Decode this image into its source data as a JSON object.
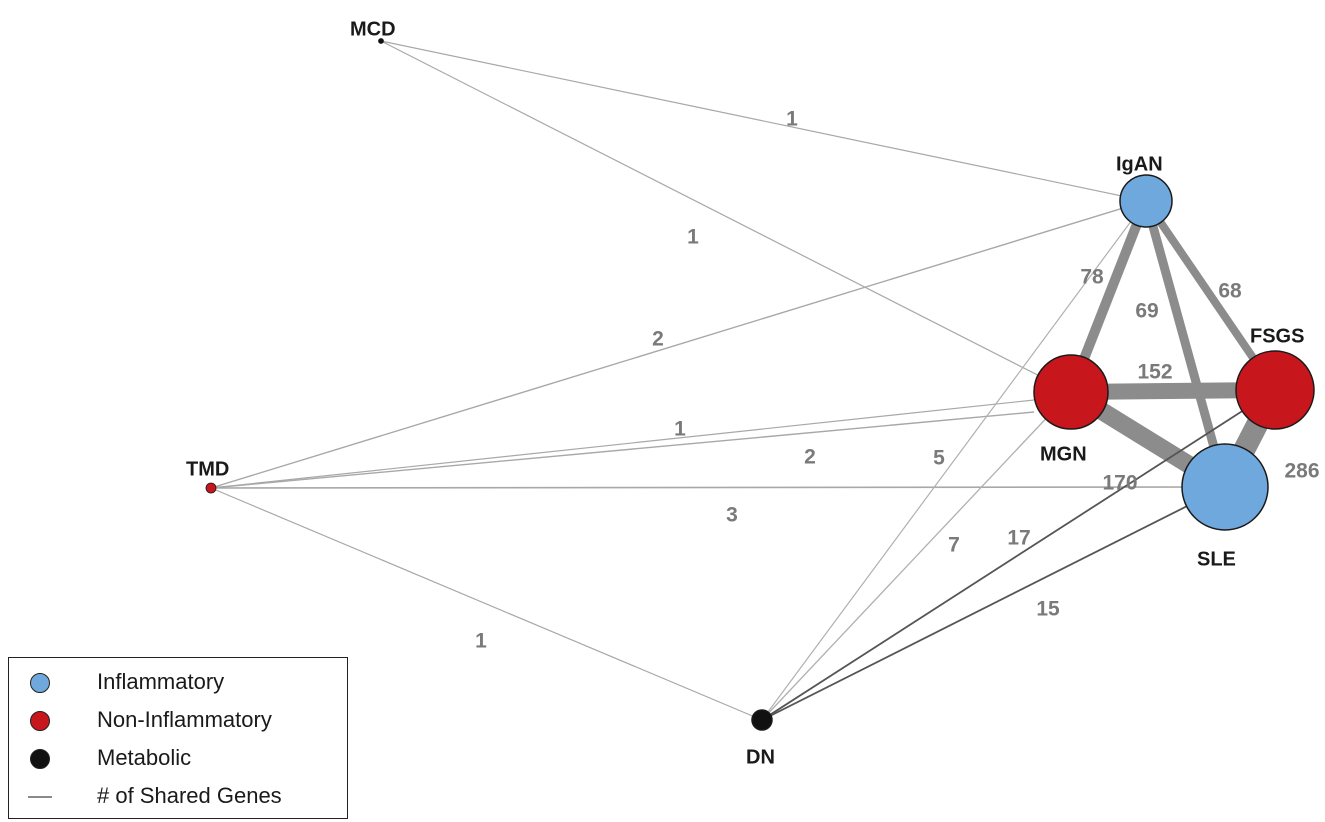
{
  "categories": [
    {
      "id": "inflammatory",
      "label": "Inflammatory",
      "color": "#6fa8dc"
    },
    {
      "id": "noninflammatory",
      "label": "Non-Inflammatory",
      "color": "#c8161d"
    },
    {
      "id": "metabolic",
      "label": "Metabolic",
      "color": "#111111"
    }
  ],
  "legend": {
    "items": [
      {
        "label": "Inflammatory",
        "kind": "circle",
        "color": "#6fa8dc"
      },
      {
        "label": "Non-Inflammatory",
        "kind": "circle",
        "color": "#c8161d"
      },
      {
        "label": "Metabolic",
        "kind": "circle",
        "color": "#111111"
      },
      {
        "label": "# of Shared Genes",
        "kind": "line",
        "color": "#8a8a8a"
      }
    ]
  },
  "nodes": [
    {
      "id": "MCD",
      "label": "MCD",
      "category": "metabolic",
      "size": "tiny"
    },
    {
      "id": "IgAN",
      "label": "IgAN",
      "category": "inflammatory",
      "size": "medium"
    },
    {
      "id": "FSGS",
      "label": "FSGS",
      "category": "noninflammatory",
      "size": "large"
    },
    {
      "id": "MGN",
      "label": "MGN",
      "category": "noninflammatory",
      "size": "large"
    },
    {
      "id": "SLE",
      "label": "SLE",
      "category": "inflammatory",
      "size": "large"
    },
    {
      "id": "TMD",
      "label": "TMD",
      "category": "noninflammatory",
      "size": "tiny"
    },
    {
      "id": "DN",
      "label": "DN",
      "category": "metabolic",
      "size": "small"
    }
  ],
  "edges": [
    {
      "id": "MCD-IgAN",
      "source": "MCD",
      "target": "IgAN",
      "shared_genes": 1
    },
    {
      "id": "MCD-MGN",
      "source": "MCD",
      "target": "MGN",
      "shared_genes": 1
    },
    {
      "id": "TMD-IgAN",
      "source": "TMD",
      "target": "IgAN",
      "shared_genes": 2
    },
    {
      "id": "TMD-MGN-a",
      "source": "TMD",
      "target": "MGN",
      "shared_genes": 1
    },
    {
      "id": "TMD-MGN-b",
      "source": "TMD",
      "target": "MGN",
      "shared_genes": 2
    },
    {
      "id": "TMD-SLE",
      "source": "TMD",
      "target": "SLE",
      "shared_genes": 3
    },
    {
      "id": "TMD-DN",
      "source": "TMD",
      "target": "DN",
      "shared_genes": 1
    },
    {
      "id": "IgAN-MGN",
      "source": "IgAN",
      "target": "MGN",
      "shared_genes": 78
    },
    {
      "id": "IgAN-SLE",
      "source": "IgAN",
      "target": "SLE",
      "shared_genes": 69
    },
    {
      "id": "IgAN-FSGS",
      "source": "IgAN",
      "target": "FSGS",
      "shared_genes": 68
    },
    {
      "id": "MGN-FSGS",
      "source": "MGN",
      "target": "FSGS",
      "shared_genes": 152
    },
    {
      "id": "MGN-SLE",
      "source": "MGN",
      "target": "SLE",
      "shared_genes": 170
    },
    {
      "id": "FSGS-SLE",
      "source": "FSGS",
      "target": "SLE",
      "shared_genes": 286
    },
    {
      "id": "DN-IgAN",
      "source": "DN",
      "target": "IgAN",
      "shared_genes": 5
    },
    {
      "id": "DN-MGN",
      "source": "DN",
      "target": "MGN",
      "shared_genes": 7
    },
    {
      "id": "DN-FSGS",
      "source": "DN",
      "target": "FSGS",
      "shared_genes": 17
    },
    {
      "id": "DN-SLE",
      "source": "DN",
      "target": "SLE",
      "shared_genes": 15
    }
  ]
}
